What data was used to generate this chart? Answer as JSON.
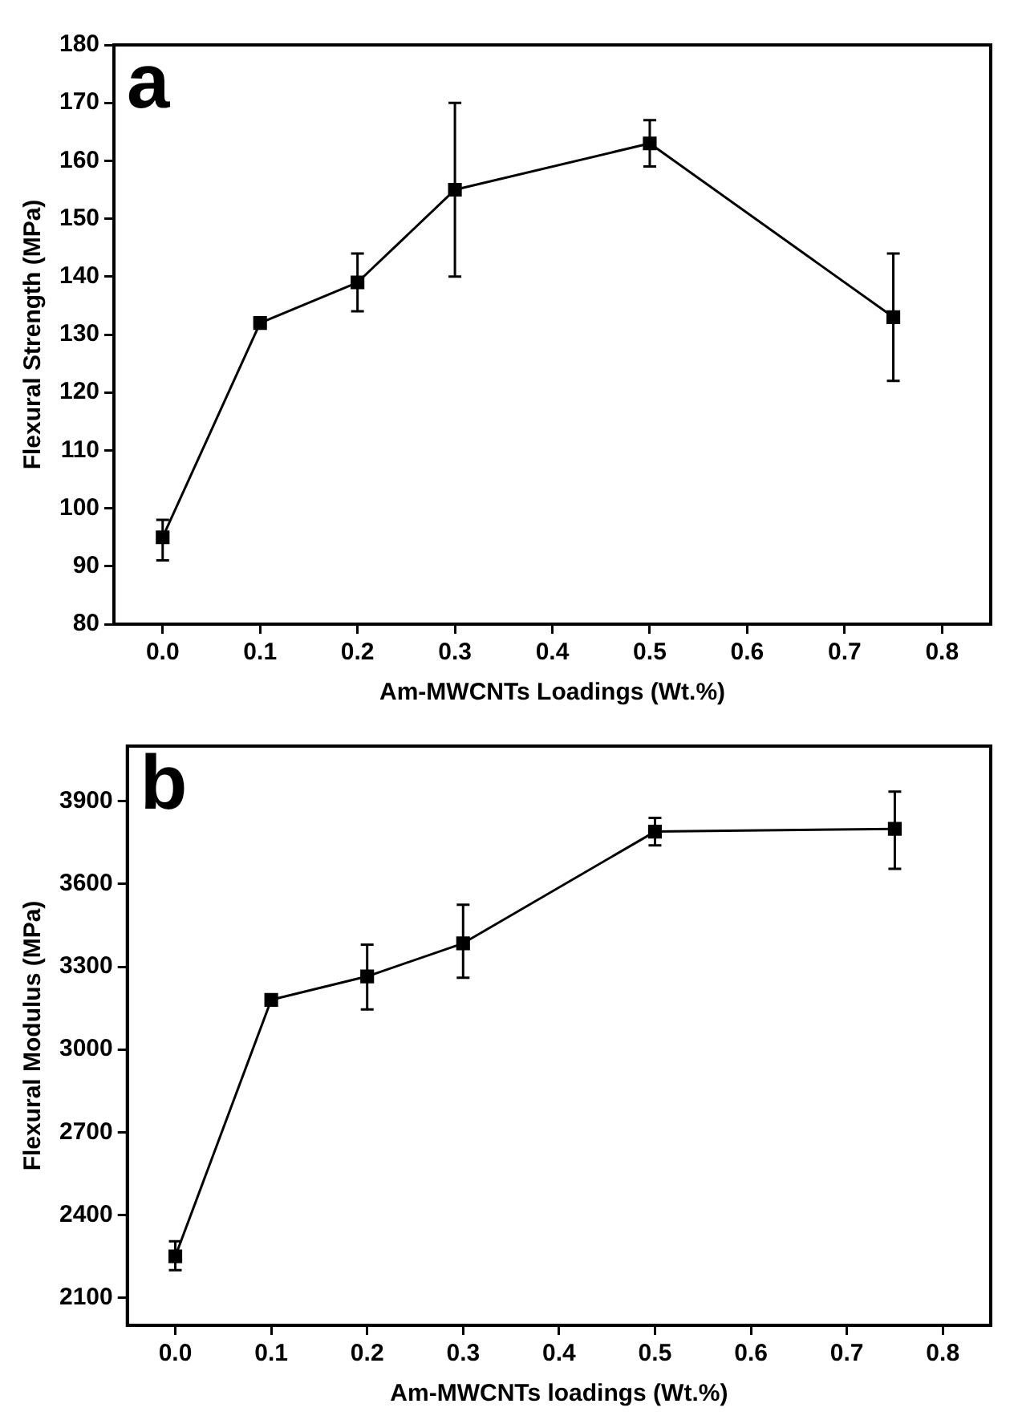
{
  "chart_data": [
    {
      "type": "line",
      "annotations": [
        "a"
      ],
      "xlabel": "Am-MWCNTs Loadings (Wt.%)",
      "ylabel": "Flexural Strength (MPa)",
      "x": [
        0,
        0.1,
        0.2,
        0.3,
        0.5,
        0.75
      ],
      "series": [
        {
          "color": "#000000",
          "values": [
            95,
            132,
            139,
            155,
            163,
            133
          ],
          "errors": [
            [
              91,
              98
            ],
            null,
            [
              134,
              144
            ],
            [
              140,
              170
            ],
            [
              159,
              167
            ],
            [
              122,
              144
            ]
          ]
        }
      ],
      "xlim": [
        -0.05,
        0.85
      ],
      "xticks": [
        {
          "value": 0,
          "label": "0.0"
        },
        0.1,
        0.2,
        0.3,
        0.4,
        0.5,
        0.6,
        0.7,
        0.8
      ],
      "ylim": [
        80,
        180
      ],
      "yticks": [
        80,
        90,
        100,
        110,
        120,
        130,
        140,
        150,
        160,
        170,
        180
      ],
      "grid": false,
      "marker": "square",
      "line_style": "solid"
    },
    {
      "type": "line",
      "annotations": [
        "b"
      ],
      "xlabel": "Am-MWCNTs loadings (Wt.%)",
      "ylabel": "Flexural Modulus (MPa)",
      "x": [
        0,
        0.1,
        0.2,
        0.3,
        0.5,
        0.75
      ],
      "series": [
        {
          "color": "#000000",
          "values": [
            2250,
            3180,
            3265,
            3385,
            3790,
            3800
          ],
          "errors": [
            [
              2200,
              2305
            ],
            null,
            [
              3145,
              3380
            ],
            [
              3260,
              3525
            ],
            [
              3740,
              3840
            ],
            [
              3655,
              3935
            ]
          ]
        }
      ],
      "xlim": [
        -0.05,
        0.85
      ],
      "xticks": [
        {
          "value": 0,
          "label": "0.0"
        },
        0.1,
        0.2,
        0.3,
        0.4,
        0.5,
        0.6,
        0.7,
        0.8
      ],
      "ylim": [
        2000,
        4100
      ],
      "yticks": [
        2100,
        2400,
        2700,
        3000,
        3300,
        3600,
        3900
      ],
      "grid": false,
      "marker": "square",
      "line_style": "solid"
    }
  ]
}
